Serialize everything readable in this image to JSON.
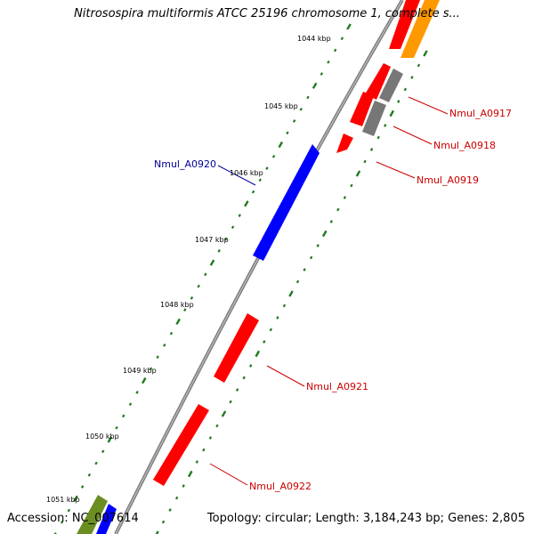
{
  "title": "Nitrosospira multiformis ATCC 25196 chromosome 1, complete s...",
  "footer": {
    "accession": "Accession: NC_007614",
    "topology": "Topology: circular; Length: 3,184,243 bp; Genes: 2,805"
  },
  "colors": {
    "backbone": "#808080",
    "tick": "#1f7a1f",
    "red": "#ff0000",
    "blue": "#0000ff",
    "orange": "#ff9900",
    "gray": "#777777",
    "olive": "#6b8e23",
    "label_red": "#cc0000",
    "label_blue": "#000099"
  },
  "tick_labels": [
    "1044 kbp",
    "1045 kbp",
    "1046 kbp",
    "1047 kbp",
    "1048 kbp",
    "1049 kbp",
    "1050 kbp",
    "1051 kbp"
  ],
  "genes": [
    {
      "label": "Nmul_A0917",
      "color": "red"
    },
    {
      "label": "Nmul_A0918",
      "color": "red"
    },
    {
      "label": "Nmul_A0919",
      "color": "red"
    },
    {
      "label": "Nmul_A0920",
      "color": "blue"
    },
    {
      "label": "Nmul_A0921",
      "color": "red"
    },
    {
      "label": "Nmul_A0922",
      "color": "red"
    }
  ]
}
